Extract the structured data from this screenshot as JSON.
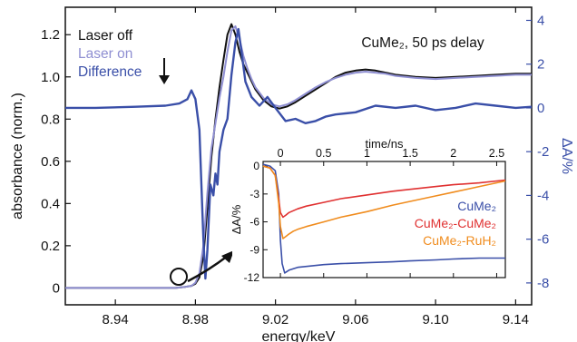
{
  "chart_data": [
    {
      "type": "line",
      "xlabel": "energy/keV",
      "ylabel": "absorbance (norm.)",
      "y2label": "ΔA/%",
      "xlim": [
        8.915,
        9.148
      ],
      "ylim": [
        -0.08,
        1.33
      ],
      "y2lim": [
        -9.0,
        4.6
      ],
      "xticks": [
        "8.94",
        "8.98",
        "9.02",
        "9.06",
        "9.10",
        "9.14"
      ],
      "yticks": [
        "0",
        "0.2",
        "0.4",
        "0.6",
        "0.8",
        "1.0",
        "1.2"
      ],
      "y2ticks": [
        "-8",
        "-6",
        "-4",
        "-2",
        "0",
        "2",
        "4"
      ],
      "annotation": "CuMe₂, 50 ps delay",
      "legend_position": "top-left",
      "colors": {
        "off": "#111111",
        "on": "#8f8fd2",
        "diff": "#3a4fa8",
        "right_axis": "#3a4fa8"
      },
      "series": [
        {
          "name": "Laser off",
          "axis": "left",
          "x": [
            8.915,
            8.96,
            8.97,
            8.975,
            8.978,
            8.98,
            8.982,
            8.984,
            8.986,
            8.988,
            8.99,
            8.992,
            8.994,
            8.996,
            8.998,
            9.0,
            9.002,
            9.004,
            9.006,
            9.008,
            9.01,
            9.014,
            9.018,
            9.022,
            9.026,
            9.03,
            9.035,
            9.04,
            9.045,
            9.05,
            9.055,
            9.06,
            9.065,
            9.07,
            9.075,
            9.08,
            9.09,
            9.1,
            9.11,
            9.12,
            9.13,
            9.14,
            9.148
          ],
          "y": [
            0.0,
            0.0,
            0.0,
            0.005,
            0.01,
            0.02,
            0.05,
            0.15,
            0.38,
            0.62,
            0.8,
            0.95,
            1.08,
            1.2,
            1.25,
            1.2,
            1.12,
            1.06,
            1.02,
            0.98,
            0.94,
            0.89,
            0.86,
            0.85,
            0.86,
            0.88,
            0.91,
            0.94,
            0.97,
            1.0,
            1.02,
            1.03,
            1.035,
            1.03,
            1.02,
            1.01,
            1.0,
            0.995,
            1.0,
            1.005,
            1.01,
            1.015,
            1.015
          ]
        },
        {
          "name": "Laser on",
          "axis": "left",
          "x": [
            8.915,
            8.96,
            8.97,
            8.975,
            8.978,
            8.98,
            8.982,
            8.984,
            8.986,
            8.988,
            8.99,
            8.992,
            8.994,
            8.996,
            8.998,
            9.0,
            9.002,
            9.004,
            9.006,
            9.008,
            9.01,
            9.014,
            9.018,
            9.022,
            9.026,
            9.03,
            9.035,
            9.04,
            9.045,
            9.05,
            9.055,
            9.06,
            9.065,
            9.07,
            9.075,
            9.08,
            9.09,
            9.1,
            9.11,
            9.12,
            9.13,
            9.14,
            9.148
          ],
          "y": [
            0.0,
            0.0,
            0.0,
            0.005,
            0.01,
            0.025,
            0.07,
            0.2,
            0.45,
            0.66,
            0.78,
            0.9,
            1.0,
            1.12,
            1.22,
            1.24,
            1.18,
            1.1,
            1.04,
            0.99,
            0.95,
            0.9,
            0.87,
            0.86,
            0.87,
            0.89,
            0.92,
            0.95,
            0.975,
            0.995,
            1.01,
            1.02,
            1.025,
            1.02,
            1.015,
            1.005,
            0.995,
            0.99,
            0.995,
            1.0,
            1.005,
            1.01,
            1.01
          ]
        },
        {
          "name": "Difference",
          "axis": "right",
          "x": [
            8.915,
            8.93,
            8.95,
            8.965,
            8.972,
            8.976,
            8.978,
            8.98,
            8.982,
            8.983,
            8.984,
            8.985,
            8.986,
            8.9875,
            8.989,
            8.99,
            8.991,
            8.992,
            8.994,
            8.996,
            8.998,
            9.0,
            9.0015,
            9.003,
            9.005,
            9.008,
            9.012,
            9.016,
            9.02,
            9.025,
            9.03,
            9.035,
            9.04,
            9.045,
            9.05,
            9.06,
            9.07,
            9.08,
            9.09,
            9.1,
            9.11,
            9.12,
            9.13,
            9.14,
            9.148
          ],
          "y": [
            0.0,
            0.0,
            0.05,
            0.1,
            0.2,
            0.4,
            0.8,
            0.4,
            -1.0,
            -3.5,
            -6.0,
            -7.8,
            -6.5,
            -3.5,
            -4.0,
            -3.0,
            -3.5,
            -2.0,
            -1.0,
            -0.5,
            1.5,
            3.0,
            3.6,
            2.6,
            1.2,
            0.5,
            0.1,
            0.5,
            0.0,
            -0.6,
            -0.5,
            -0.7,
            -0.6,
            -0.4,
            -0.3,
            -0.2,
            0.1,
            0.0,
            0.1,
            -0.1,
            0.0,
            0.2,
            0.1,
            0.0,
            0.05
          ]
        }
      ]
    },
    {
      "type": "line",
      "xlabel": "time/ns",
      "ylabel": "ΔA/%",
      "xlim": [
        -0.2,
        2.6
      ],
      "ylim": [
        -12,
        0.5
      ],
      "xticks": [
        "0",
        "0.5",
        "1",
        "1.5",
        "2",
        "2.5"
      ],
      "yticks": [
        "-12",
        "-9",
        "-6",
        "-3",
        "0"
      ],
      "legend_position": "bottom-right",
      "series": [
        {
          "name": "CuMe₂",
          "color": "#3a4fa8",
          "x": [
            -0.2,
            -0.12,
            -0.06,
            -0.02,
            0.0,
            0.02,
            0.05,
            0.1,
            0.2,
            0.3,
            0.5,
            0.7,
            1.0,
            1.3,
            1.5,
            1.8,
            2.0,
            2.3,
            2.6
          ],
          "y": [
            0.2,
            0.0,
            -0.5,
            -3.0,
            -8.0,
            -10.5,
            -11.5,
            -11.2,
            -10.9,
            -10.8,
            -10.6,
            -10.5,
            -10.4,
            -10.3,
            -10.2,
            -10.1,
            -10.0,
            -9.9,
            -9.9
          ]
        },
        {
          "name": "CuMe₂-CuMe₂",
          "color": "#e03131",
          "x": [
            -0.2,
            -0.12,
            -0.06,
            -0.02,
            0.0,
            0.03,
            0.06,
            0.1,
            0.2,
            0.3,
            0.5,
            0.7,
            1.0,
            1.3,
            1.5,
            1.8,
            2.0,
            2.3,
            2.6
          ],
          "y": [
            0.0,
            -0.2,
            -1.0,
            -3.5,
            -5.0,
            -5.5,
            -5.3,
            -5.0,
            -4.6,
            -4.3,
            -3.9,
            -3.5,
            -3.1,
            -2.7,
            -2.5,
            -2.2,
            -2.0,
            -1.8,
            -1.5
          ]
        },
        {
          "name": "CuMe₂-RuH₂",
          "color": "#f08c1e",
          "x": [
            -0.2,
            -0.12,
            -0.06,
            -0.02,
            0.0,
            0.03,
            0.06,
            0.1,
            0.15,
            0.2,
            0.3,
            0.5,
            0.7,
            1.0,
            1.3,
            1.5,
            1.8,
            2.0,
            2.3,
            2.6
          ],
          "y": [
            0.0,
            -0.2,
            -1.0,
            -4.0,
            -6.5,
            -7.8,
            -7.6,
            -7.3,
            -7.0,
            -6.8,
            -6.5,
            -6.0,
            -5.5,
            -4.9,
            -4.2,
            -3.8,
            -3.2,
            -2.8,
            -2.2,
            -1.6
          ]
        }
      ]
    }
  ]
}
